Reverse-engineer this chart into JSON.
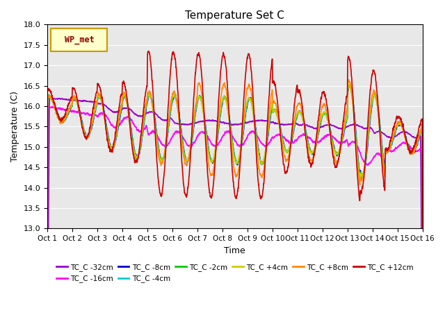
{
  "title": "Temperature Set C",
  "xlabel": "Time",
  "ylabel": "Temperature (C)",
  "ylim": [
    13.0,
    18.0
  ],
  "yticks": [
    13.0,
    13.5,
    14.0,
    14.5,
    15.0,
    15.5,
    16.0,
    16.5,
    17.0,
    17.5,
    18.0
  ],
  "x_labels": [
    "Oct 1",
    "Oct 2",
    "Oct 3",
    "Oct 4",
    "Oct 5",
    "Oct 6",
    "Oct 7",
    "Oct 8",
    "Oct 9",
    "Oct 10",
    "Oct 11",
    "Oct 12",
    "Oct 13",
    "Oct 14",
    "Oct 15",
    "Oct 16"
  ],
  "series_order": [
    "TC_C -32cm",
    "TC_C -16cm",
    "TC_C -8cm",
    "TC_C -4cm",
    "TC_C -2cm",
    "TC_C +4cm",
    "TC_C +8cm",
    "TC_C +12cm"
  ],
  "series": {
    "TC_C -32cm": {
      "color": "#9900cc",
      "linewidth": 1.2
    },
    "TC_C -16cm": {
      "color": "#ff00ff",
      "linewidth": 1.2
    },
    "TC_C -8cm": {
      "color": "#0000cc",
      "linewidth": 1.2
    },
    "TC_C -4cm": {
      "color": "#00cccc",
      "linewidth": 1.2
    },
    "TC_C -2cm": {
      "color": "#00cc00",
      "linewidth": 1.2
    },
    "TC_C +4cm": {
      "color": "#cccc00",
      "linewidth": 1.2
    },
    "TC_C +8cm": {
      "color": "#ff8800",
      "linewidth": 1.2
    },
    "TC_C +12cm": {
      "color": "#cc0000",
      "linewidth": 1.2
    }
  },
  "legend_label": "WP_met",
  "legend_facecolor": "#ffffcc",
  "legend_edgecolor": "#cc9900",
  "bg_color": "#e8e8e8",
  "n_points": 2880
}
